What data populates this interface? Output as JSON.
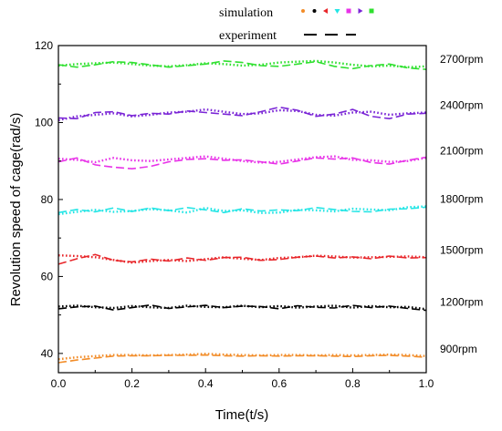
{
  "chart_data": {
    "type": "line",
    "xlabel": "Time(t/s)",
    "ylabel": "Revolution speed of cage(rad/s)",
    "xlim": [
      0.0,
      1.0
    ],
    "ylim": [
      35,
      120
    ],
    "xticks": [
      "0.0",
      "0.2",
      "0.4",
      "0.6",
      "0.8",
      "1.0"
    ],
    "yticks": [
      "40",
      "60",
      "80",
      "100",
      "120"
    ],
    "legend": {
      "position": "top",
      "simulation_label": "simulation",
      "experiment_label": "experiment",
      "marker_colors": [
        "#f28c28",
        "#000000",
        "#e8262a",
        "#22e5e5",
        "#e832e8",
        "#7a25d6",
        "#2fe02f"
      ]
    },
    "x": [
      0.0,
      0.05,
      0.1,
      0.15,
      0.2,
      0.25,
      0.3,
      0.35,
      0.4,
      0.45,
      0.5,
      0.55,
      0.6,
      0.65,
      0.7,
      0.75,
      0.8,
      0.85,
      0.9,
      0.95,
      1.0
    ],
    "series": [
      {
        "name": "900rpm",
        "color": "#f28c28",
        "simulation": [
          38.5,
          39.0,
          39.3,
          39.6,
          39.6,
          39.5,
          39.6,
          39.7,
          39.9,
          39.7,
          39.6,
          39.5,
          39.6,
          39.6,
          39.5,
          39.6,
          39.5,
          39.6,
          39.7,
          39.6,
          39.3
        ],
        "experiment": [
          37.6,
          38.3,
          38.8,
          39.3,
          39.4,
          39.4,
          39.5,
          39.5,
          39.6,
          39.4,
          39.3,
          39.4,
          39.3,
          39.4,
          39.4,
          39.3,
          39.2,
          39.4,
          39.5,
          39.3,
          39.0
        ]
      },
      {
        "name": "1200rpm",
        "color": "#000000",
        "simulation": [
          52.2,
          52.4,
          52.0,
          51.8,
          52.3,
          52.0,
          51.8,
          52.4,
          52.1,
          52.0,
          52.4,
          52.0,
          52.3,
          51.9,
          52.2,
          52.4,
          51.9,
          52.3,
          52.0,
          52.1,
          51.5
        ],
        "experiment": [
          51.6,
          52.1,
          52.3,
          51.3,
          51.9,
          52.6,
          51.7,
          52.1,
          52.5,
          51.9,
          52.3,
          52.2,
          51.6,
          52.4,
          52.0,
          51.8,
          52.5,
          51.9,
          52.3,
          51.7,
          51.2
        ]
      },
      {
        "name": "1500rpm",
        "color": "#e8262a",
        "simulation": [
          65.5,
          65.3,
          65.0,
          64.3,
          63.6,
          64.0,
          64.3,
          64.0,
          64.5,
          65.0,
          64.6,
          64.3,
          64.8,
          65.0,
          65.4,
          65.2,
          64.9,
          65.0,
          65.1,
          65.2,
          65.0
        ],
        "experiment": [
          63.2,
          64.6,
          65.7,
          64.2,
          63.8,
          64.5,
          64.0,
          64.8,
          64.2,
          64.9,
          65.0,
          64.2,
          64.4,
          65.0,
          65.3,
          64.8,
          65.1,
          64.6,
          65.3,
          64.8,
          64.9
        ]
      },
      {
        "name": "1800rpm",
        "color": "#22e5e5",
        "simulation": [
          76.2,
          76.8,
          77.3,
          76.8,
          77.0,
          77.5,
          77.2,
          76.6,
          77.8,
          77.0,
          77.2,
          76.5,
          76.6,
          77.3,
          77.2,
          76.9,
          77.6,
          77.4,
          77.2,
          78.0,
          78.2
        ],
        "experiment": [
          76.6,
          77.4,
          76.8,
          77.8,
          76.9,
          77.8,
          77.1,
          77.9,
          77.3,
          76.6,
          77.6,
          77.0,
          77.3,
          77.1,
          77.9,
          77.4,
          76.9,
          76.8,
          77.5,
          77.6,
          78.0
        ]
      },
      {
        "name": "2100rpm",
        "color": "#e832e8",
        "simulation": [
          90.6,
          90.3,
          89.7,
          90.8,
          90.2,
          90.0,
          90.4,
          90.8,
          91.2,
          90.6,
          90.0,
          89.6,
          89.8,
          90.4,
          91.0,
          91.2,
          90.3,
          90.2,
          89.8,
          90.0,
          90.8
        ],
        "experiment": [
          89.8,
          90.8,
          89.0,
          88.4,
          88.0,
          88.6,
          89.8,
          90.4,
          90.6,
          90.2,
          90.3,
          89.8,
          89.2,
          90.0,
          90.8,
          90.5,
          90.8,
          89.6,
          89.2,
          90.2,
          91.0
        ]
      },
      {
        "name": "2400rpm",
        "color": "#7a25d6",
        "simulation": [
          100.6,
          101.6,
          102.0,
          102.4,
          101.6,
          102.0,
          102.6,
          102.8,
          103.4,
          102.8,
          102.2,
          102.4,
          103.2,
          103.0,
          102.0,
          101.8,
          102.6,
          102.8,
          102.0,
          102.4,
          102.6
        ],
        "experiment": [
          101.2,
          101.0,
          102.6,
          102.8,
          101.8,
          102.4,
          102.2,
          103.0,
          102.6,
          102.2,
          101.8,
          102.8,
          104.0,
          103.2,
          101.6,
          102.2,
          103.4,
          101.6,
          101.0,
          102.2,
          102.4
        ]
      },
      {
        "name": "2700rpm",
        "color": "#2fe02f",
        "simulation": [
          114.8,
          115.2,
          115.4,
          115.6,
          115.2,
          114.8,
          114.6,
          114.9,
          115.4,
          115.2,
          114.8,
          115.0,
          115.6,
          115.8,
          116.0,
          115.6,
          115.0,
          114.6,
          114.8,
          114.4,
          114.6
        ],
        "experiment": [
          115.0,
          114.4,
          115.0,
          115.8,
          115.6,
          115.0,
          114.4,
          114.8,
          115.2,
          116.0,
          115.6,
          114.8,
          114.6,
          115.2,
          115.8,
          114.6,
          114.0,
          114.8,
          115.2,
          114.2,
          113.8
        ]
      }
    ]
  }
}
